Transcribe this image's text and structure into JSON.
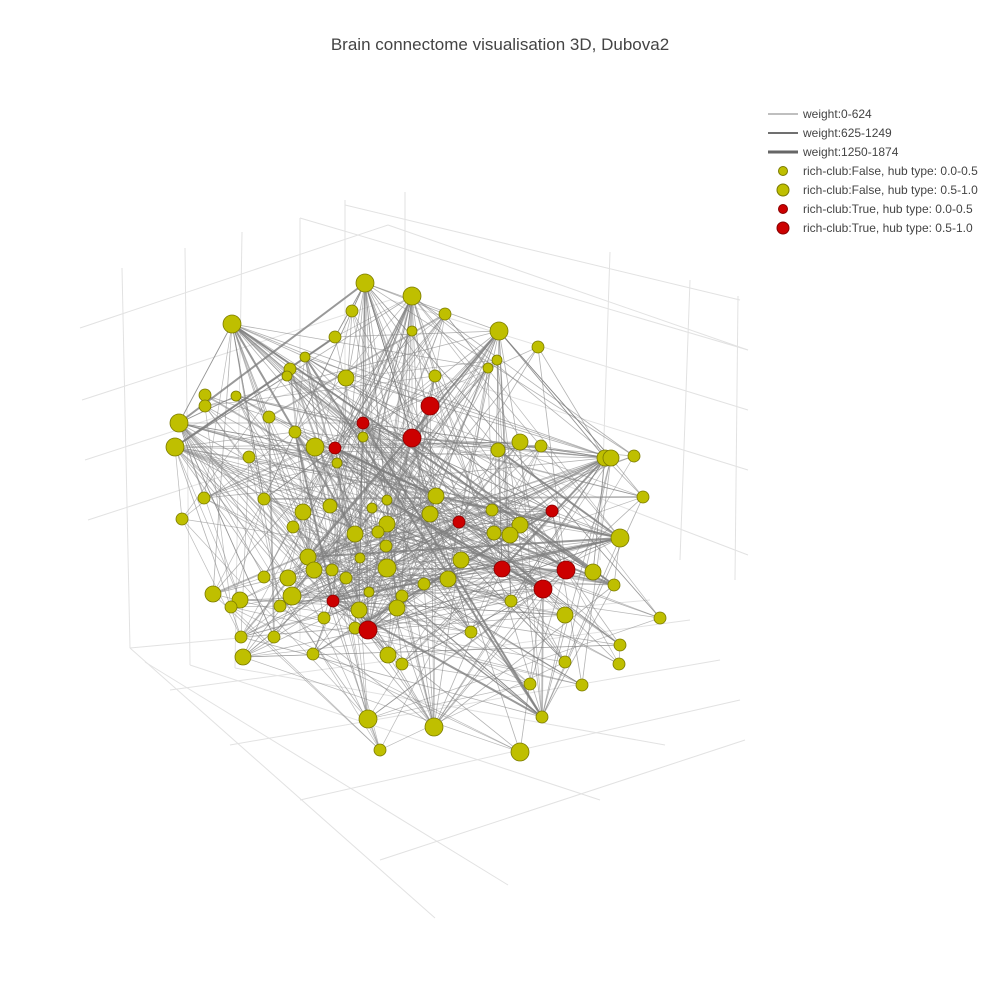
{
  "chart_data": {
    "type": "scatter",
    "subtype": "3d-network",
    "title": "Brain connectome visualisation 3D, Dubova2",
    "grid": true,
    "legend_position": "top-right",
    "legend": [
      {
        "kind": "line",
        "label": "weight:0-624",
        "width": 1,
        "color": "#7f7f7f"
      },
      {
        "kind": "line",
        "label": "weight:625-1249",
        "width": 2,
        "color": "#707070"
      },
      {
        "kind": "line",
        "label": "weight:1250-1874",
        "width": 3,
        "color": "#666666"
      },
      {
        "kind": "marker",
        "label": "rich-club:False, hub type: 0.0-0.5",
        "size": "small",
        "color": "#bfbf00"
      },
      {
        "kind": "marker",
        "label": "rich-club:False, hub type: 0.5-1.0",
        "size": "large",
        "color": "#bfbf00"
      },
      {
        "kind": "marker",
        "label": "rich-club:True, hub type: 0.0-0.5",
        "size": "small",
        "color": "#cc0000"
      },
      {
        "kind": "marker",
        "label": "rich-club:True, hub type: 0.5-1.0",
        "size": "large",
        "color": "#cc0000"
      }
    ],
    "edge_color": "#7f7f7f",
    "node_edge_color": "#7a7a00",
    "rich_club_edge_color": "#880000"
  }
}
